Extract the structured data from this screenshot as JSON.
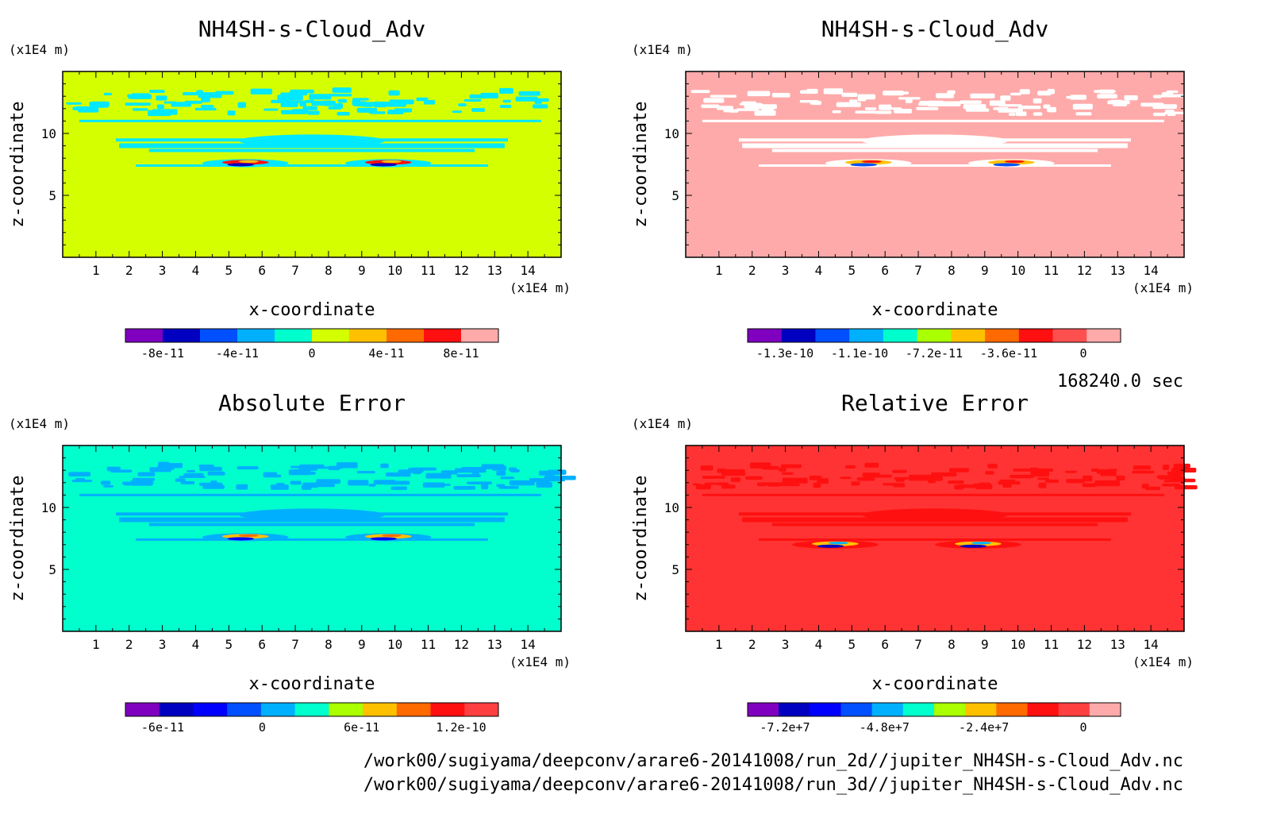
{
  "footer": {
    "time": "168240.0 sec",
    "path_2d": "/work00/sugiyama/deepconv/arare6-20141008/run_2d//jupiter_NH4SH-s-Cloud_Adv.nc",
    "path_3d": "/work00/sugiyama/deepconv/arare6-20141008/run_3d//jupiter_NH4SH-s-Cloud_Adv.nc"
  },
  "chart_data": [
    {
      "type": "heatmap",
      "title": "NH4SH-s-Cloud_Adv",
      "xlabel": "x-coordinate",
      "ylabel": "z-coordinate",
      "x_unit": "(x1E4 m)",
      "y_unit": "(x1E4 m)",
      "xlim": [
        0,
        15
      ],
      "ylim": [
        0,
        15
      ],
      "x_ticks": [
        "1",
        "2",
        "3",
        "4",
        "5",
        "6",
        "7",
        "8",
        "9",
        "10",
        "11",
        "12",
        "13",
        "14"
      ],
      "y_ticks": [
        "5",
        "10"
      ],
      "background_color": "#d4ff00",
      "colorbar": {
        "colors": [
          "#7f00bf",
          "#0000c0",
          "#0050ff",
          "#00b0ff",
          "#00ffcc",
          "#d4ff00",
          "#ffc000",
          "#ff6a00",
          "#ff1010",
          "#ffaaaa"
        ],
        "tick_labels": [
          "-8e-11",
          "-4e-11",
          "0",
          "4e-11",
          "8e-11"
        ]
      }
    },
    {
      "type": "heatmap",
      "title": "NH4SH-s-Cloud_Adv",
      "xlabel": "x-coordinate",
      "ylabel": "z-coordinate",
      "x_unit": "(x1E4 m)",
      "y_unit": "(x1E4 m)",
      "xlim": [
        0,
        15
      ],
      "ylim": [
        0,
        15
      ],
      "x_ticks": [
        "1",
        "2",
        "3",
        "4",
        "5",
        "6",
        "7",
        "8",
        "9",
        "10",
        "11",
        "12",
        "13",
        "14"
      ],
      "y_ticks": [
        "5",
        "10"
      ],
      "background_color": "#ffaaaa",
      "colorbar": {
        "colors": [
          "#7f00bf",
          "#0000c0",
          "#0050ff",
          "#00b0ff",
          "#00ffcc",
          "#aaff00",
          "#ffc000",
          "#ff6a00",
          "#ff1010",
          "#ff5050",
          "#ffaaaa"
        ],
        "tick_labels": [
          "-1.3e-10",
          "-1.1e-10",
          "-7.2e-11",
          "-3.6e-11",
          "0"
        ]
      }
    },
    {
      "type": "heatmap",
      "title": "Absolute Error",
      "xlabel": "x-coordinate",
      "ylabel": "z-coordinate",
      "x_unit": "(x1E4 m)",
      "y_unit": "(x1E4 m)",
      "xlim": [
        0,
        15
      ],
      "ylim": [
        0,
        15
      ],
      "x_ticks": [
        "1",
        "2",
        "3",
        "4",
        "5",
        "6",
        "7",
        "8",
        "9",
        "10",
        "11",
        "12",
        "13",
        "14"
      ],
      "y_ticks": [
        "5",
        "10"
      ],
      "background_color": "#00ffcc",
      "colorbar": {
        "colors": [
          "#7f00bf",
          "#0000c0",
          "#0000ff",
          "#0050ff",
          "#00b0ff",
          "#00ffcc",
          "#aaff00",
          "#ffc000",
          "#ff6a00",
          "#ff1010",
          "#ff4040"
        ],
        "tick_labels": [
          "-6e-11",
          "0",
          "6e-11",
          "1.2e-10"
        ]
      }
    },
    {
      "type": "heatmap",
      "title": "Relative Error",
      "xlabel": "x-coordinate",
      "ylabel": "z-coordinate",
      "x_unit": "(x1E4 m)",
      "y_unit": "(x1E4 m)",
      "xlim": [
        0,
        15
      ],
      "ylim": [
        0,
        15
      ],
      "x_ticks": [
        "1",
        "2",
        "3",
        "4",
        "5",
        "6",
        "7",
        "8",
        "9",
        "10",
        "11",
        "12",
        "13",
        "14"
      ],
      "y_ticks": [
        "5",
        "10"
      ],
      "background_color": "#ff3333",
      "colorbar": {
        "colors": [
          "#7f00bf",
          "#0000c0",
          "#0000ff",
          "#0050ff",
          "#00b0ff",
          "#00ffcc",
          "#aaff00",
          "#ffc000",
          "#ff6a00",
          "#ff1010",
          "#ff4040",
          "#ffaaaa"
        ],
        "tick_labels": [
          "-7.2e+7",
          "-4.8e+7",
          "-2.4e+7",
          "0"
        ]
      }
    }
  ]
}
